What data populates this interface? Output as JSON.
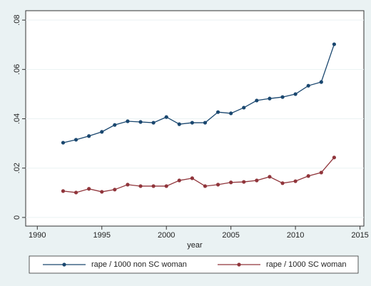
{
  "chart_data": {
    "type": "line",
    "x_label": "year",
    "x": [
      1992,
      1993,
      1994,
      1995,
      1996,
      1997,
      1998,
      1999,
      2000,
      2001,
      2002,
      2003,
      2004,
      2005,
      2006,
      2007,
      2008,
      2009,
      2010,
      2011,
      2012,
      2013
    ],
    "series": [
      {
        "name": "rape / 1000 non SC woman",
        "color": "#1a476f",
        "values": [
          0.0303,
          0.0315,
          0.033,
          0.0347,
          0.0375,
          0.039,
          0.0387,
          0.0384,
          0.0407,
          0.0378,
          0.0384,
          0.0384,
          0.0427,
          0.0422,
          0.0445,
          0.0474,
          0.0482,
          0.0488,
          0.05,
          0.0534,
          0.0549,
          0.0702
        ]
      },
      {
        "name": "rape / 1000 SC woman",
        "color": "#90353b",
        "values": [
          0.0107,
          0.0101,
          0.0116,
          0.0104,
          0.0113,
          0.0133,
          0.0127,
          0.0127,
          0.0127,
          0.015,
          0.0159,
          0.0127,
          0.0133,
          0.0142,
          0.0144,
          0.015,
          0.0165,
          0.0139,
          0.0147,
          0.0168,
          0.0182,
          0.0243
        ]
      }
    ],
    "xlim": [
      1989.1,
      2015.3
    ],
    "xticks": [
      1990,
      1995,
      2000,
      2005,
      2010,
      2015
    ],
    "ylim": [
      -0.0035,
      0.0838
    ],
    "yticks": [
      0,
      {
        "value": 0.02,
        "label": ".02"
      },
      {
        "value": 0.04,
        "label": ".04"
      },
      {
        "value": 0.06,
        "label": ".06"
      },
      {
        "value": 0.08,
        "label": ".08"
      }
    ],
    "grid": true,
    "legend": "bottom"
  }
}
